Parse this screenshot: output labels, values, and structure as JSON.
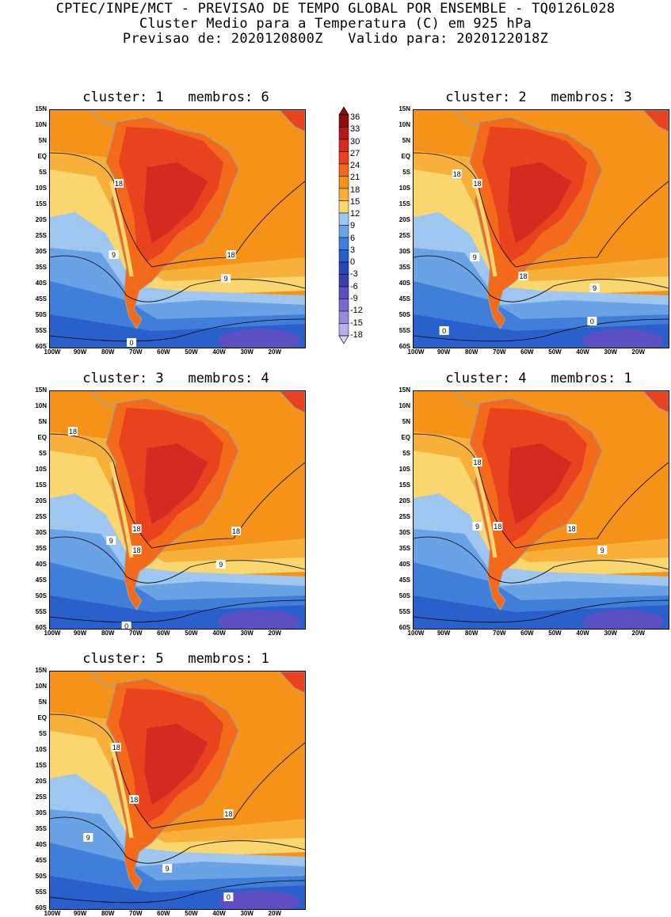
{
  "header": {
    "line1": "CPTEC/INPE/MCT - PREVISAO DE TEMPO GLOBAL POR ENSEMBLE - TQ0126L028",
    "line2": "Cluster Medio para a Temperatura (C) em 925 hPa",
    "line3": "Previsao de: 2020120800Z   Valido para: 2020122018Z"
  },
  "panels": [
    {
      "title": "cluster: 1   membros: 6",
      "labels": [
        "18",
        "9",
        "18",
        "9",
        "0"
      ]
    },
    {
      "title": "cluster: 2   membros: 3",
      "labels": [
        "18",
        "18",
        "9",
        "18",
        "9",
        "0",
        "0"
      ]
    },
    {
      "title": "cluster: 3   membros: 4",
      "labels": [
        "18",
        "9",
        "18",
        "18",
        "18",
        "9",
        "0"
      ]
    },
    {
      "title": "cluster: 4   membros: 1",
      "labels": [
        "18",
        "9",
        "18",
        "18",
        "9"
      ]
    },
    {
      "title": "cluster: 5   membros: 1",
      "labels": [
        "18",
        "18",
        "18",
        "9",
        "9",
        "0"
      ]
    }
  ],
  "axes": {
    "lat_ticks": [
      "15N",
      "10N",
      "5N",
      "EQ",
      "5S",
      "10S",
      "15S",
      "20S",
      "25S",
      "30S",
      "35S",
      "40S",
      "45S",
      "50S",
      "55S",
      "60S"
    ],
    "lon_ticks": [
      "100W",
      "90W",
      "80W",
      "70W",
      "60W",
      "50W",
      "40W",
      "30W",
      "20W"
    ]
  },
  "colorbar": {
    "labels": [
      "36",
      "33",
      "30",
      "27",
      "24",
      "21",
      "18",
      "15",
      "12",
      "9",
      "6",
      "3",
      "0",
      "-3",
      "-6",
      "-9",
      "-12",
      "-15",
      "-18"
    ],
    "colors": [
      "#8c0d0d",
      "#b31a1a",
      "#d42a22",
      "#e8431e",
      "#f26a1a",
      "#f5921a",
      "#f7b13a",
      "#fad66e",
      "#9fc6ef",
      "#6aa2e6",
      "#3f7fd9",
      "#2960cc",
      "#2848b8",
      "#3a3fb0",
      "#5b4fc2",
      "#7a68cf",
      "#9a88dc",
      "#bcaee8",
      "#ddd4f4"
    ]
  },
  "map_colors": {
    "ocean_warm": "#f5921a",
    "ocean_mild": "#f7b13a",
    "yellow": "#fad66e",
    "lightblue": "#9fc6ef",
    "blue": "#6aa2e6",
    "mid": "#3f7fd9",
    "deep": "#2960cc",
    "purple": "#5b4fc2",
    "land_hot": "#e8431e",
    "land_hotter": "#d42a22",
    "land_top": "#f26a1a",
    "coast": "#a0a0a0"
  }
}
